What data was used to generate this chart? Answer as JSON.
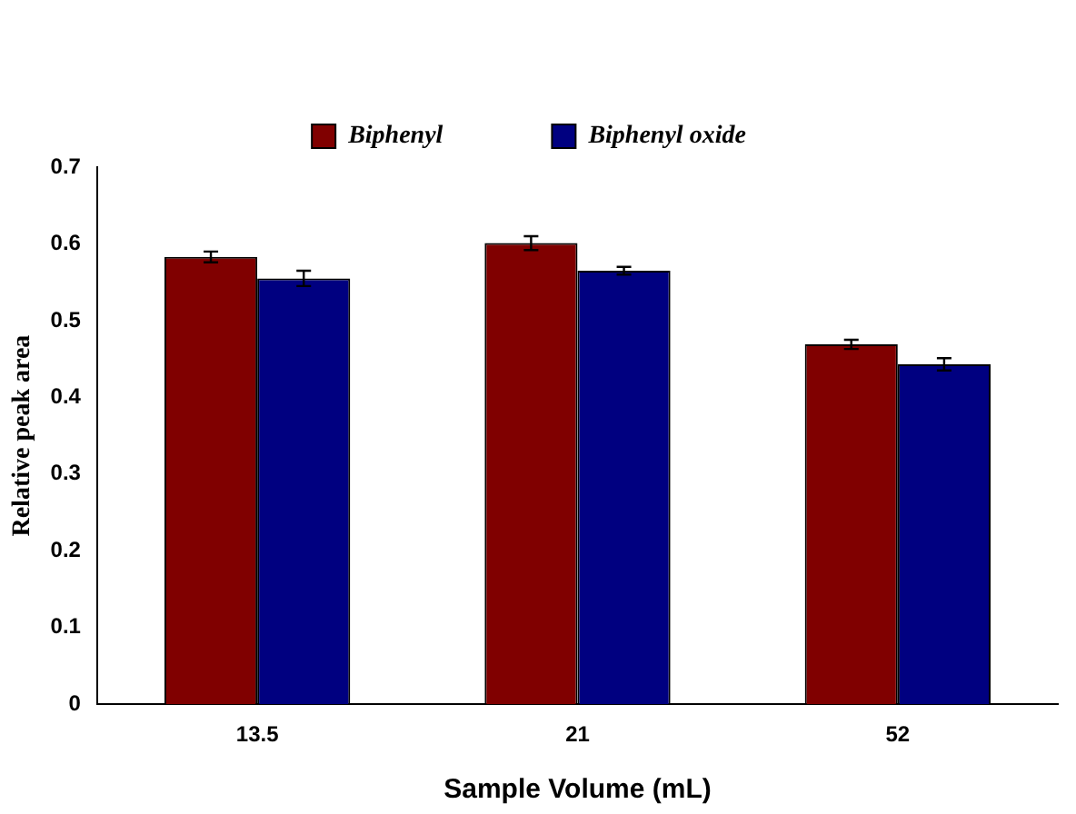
{
  "chart_data": {
    "type": "bar",
    "xlabel": "Sample Volume (mL)",
    "ylabel": "Relative peak area",
    "categories": [
      "13.5",
      "21",
      "52"
    ],
    "series": [
      {
        "name": "Biphenyl",
        "color": "#800000",
        "values": [
          0.583,
          0.601,
          0.469
        ],
        "errors": [
          0.007,
          0.009,
          0.006
        ]
      },
      {
        "name": "Biphenyl oxide",
        "color": "#000080",
        "values": [
          0.555,
          0.565,
          0.443
        ],
        "errors": [
          0.01,
          0.005,
          0.008
        ]
      }
    ],
    "ylim": [
      0,
      0.7
    ],
    "yticks": [
      0,
      0.1,
      0.2,
      0.3,
      0.4,
      0.5,
      0.6,
      0.7
    ],
    "grid": false,
    "legend": "top"
  }
}
